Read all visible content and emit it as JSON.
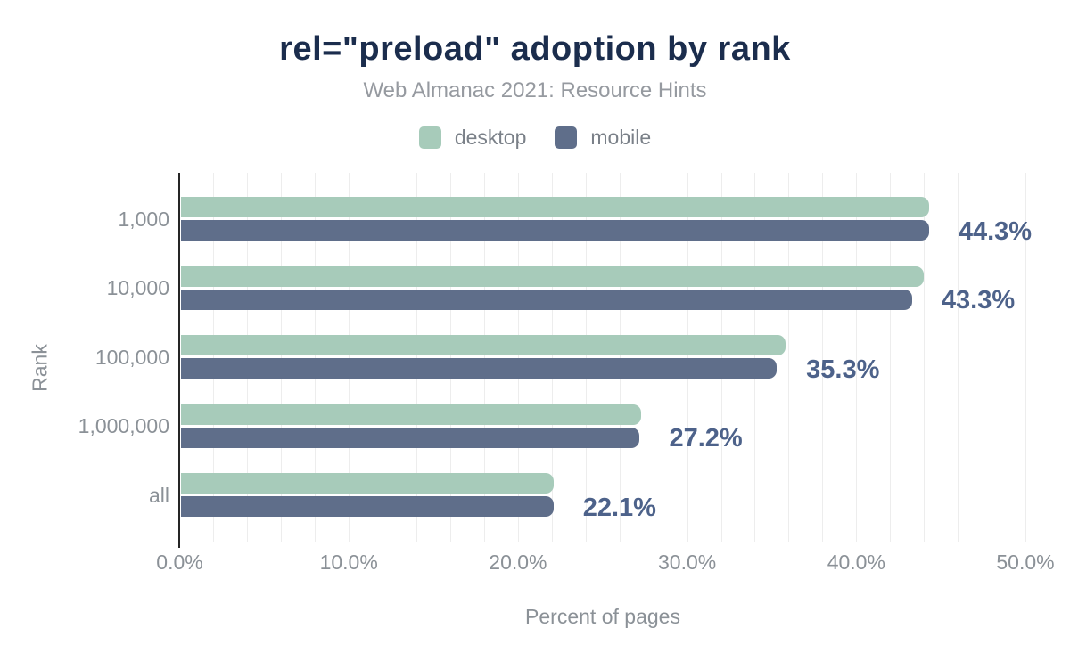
{
  "header": {
    "title": "rel=\"preload\" adoption by rank",
    "subtitle": "Web Almanac 2021: Resource Hints"
  },
  "legend": {
    "items": [
      {
        "label": "desktop",
        "color": "#a7cbba"
      },
      {
        "label": "mobile",
        "color": "#5f6e8a"
      }
    ]
  },
  "chart_data": {
    "type": "bar",
    "orientation": "horizontal",
    "title": "rel=\"preload\" adoption by rank",
    "subtitle": "Web Almanac 2021: Resource Hints",
    "categories": [
      "1,000",
      "10,000",
      "100,000",
      "1,000,000",
      "all"
    ],
    "series": [
      {
        "name": "desktop",
        "color": "#a7cbba",
        "values": [
          44.3,
          44.0,
          35.8,
          27.3,
          22.1
        ]
      },
      {
        "name": "mobile",
        "color": "#5f6e8a",
        "values": [
          44.3,
          43.3,
          35.3,
          27.2,
          22.1
        ]
      }
    ],
    "bar_labels": [
      "44.3%",
      "43.3%",
      "35.3%",
      "27.2%",
      "22.1%"
    ],
    "value_labels_follow_series": "mobile",
    "xlabel": "Percent of pages",
    "ylabel": "Rank",
    "xlim": [
      0,
      50
    ],
    "x_ticks": [
      "0.0%",
      "10.0%",
      "20.0%",
      "30.0%",
      "40.0%",
      "50.0%"
    ],
    "x_tick_values": [
      0,
      10,
      20,
      30,
      40,
      50
    ],
    "gridline_step": 2,
    "grid": true,
    "legend_position": "top",
    "colors": {
      "title": "#1b2d4d",
      "subtitle": "#969aa0",
      "axis_text": "#8b9197",
      "legend_text": "#7a8088",
      "value_label": "#4d628a",
      "gridline": "#ededed",
      "axis_line": "#252525"
    }
  }
}
